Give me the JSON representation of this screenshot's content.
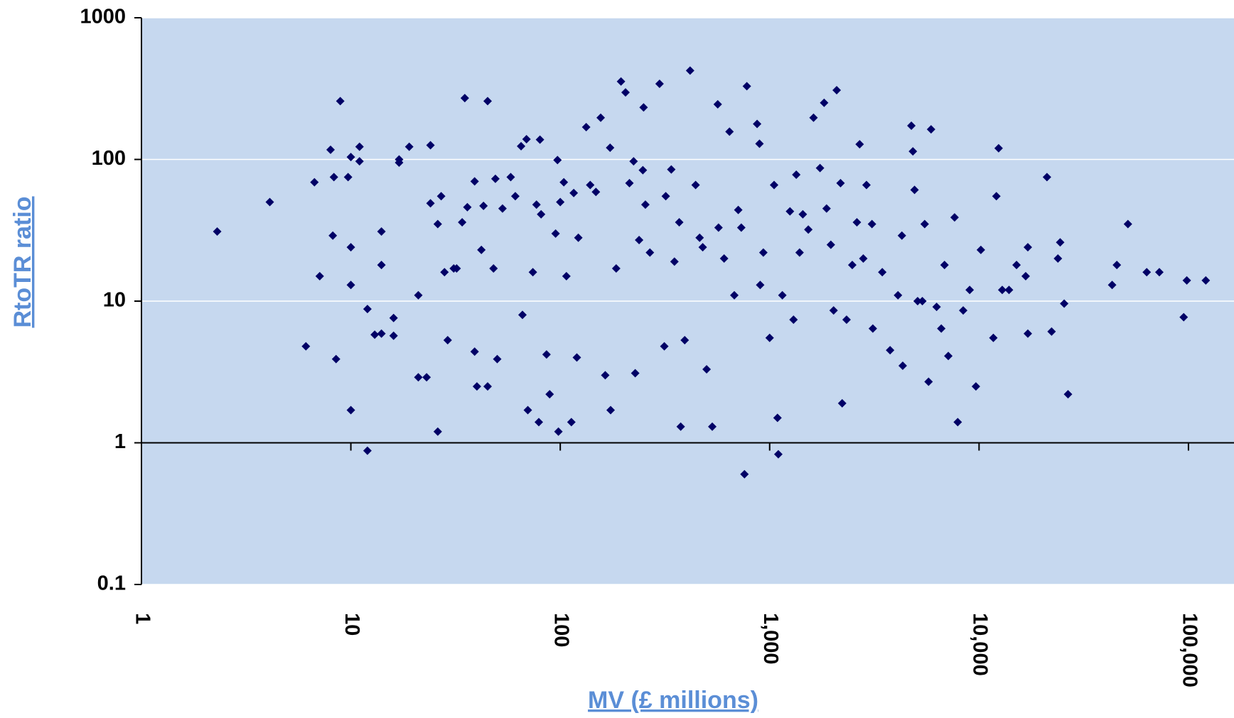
{
  "chart_data": {
    "type": "scatter",
    "x_title": "MV (£ millions)",
    "y_title": "RtoTR ratio",
    "xlog": true,
    "ylog": true,
    "xlim": [
      1,
      165000
    ],
    "ylim": [
      0.1,
      1000
    ],
    "xticks": [
      1,
      10,
      100,
      {
        "value": 1000,
        "label": "1,000"
      },
      {
        "value": 10000,
        "label": "10,000"
      },
      {
        "value": 100000,
        "label": "100,000"
      }
    ],
    "yticks": [
      0.1,
      1,
      10,
      100,
      1000
    ],
    "x_axis_crosses": 1,
    "grid": true,
    "background": "#c6d8ef",
    "color": "#000066",
    "x": [
      2.3,
      4.1,
      6.1,
      6.7,
      7.1,
      8.0,
      8.2,
      8.3,
      8.5,
      8.9,
      9.7,
      10,
      10,
      10,
      10,
      11,
      11,
      12,
      12,
      13,
      14,
      14,
      14,
      16,
      16,
      17,
      17,
      19,
      21,
      21,
      23,
      24,
      24,
      26,
      26,
      27,
      28,
      29,
      31,
      32,
      35,
      34,
      36,
      39,
      39,
      40,
      43,
      42,
      45,
      45,
      48,
      49,
      50,
      53,
      58,
      61,
      65,
      66,
      69,
      70,
      74,
      77,
      79,
      80,
      81,
      86,
      89,
      95,
      97,
      98,
      100,
      104,
      107,
      113,
      116,
      120,
      122,
      133,
      139,
      148,
      156,
      164,
      173,
      174,
      185,
      195,
      205,
      214,
      224,
      228,
      238,
      248,
      250,
      255,
      268,
      298,
      314,
      319,
      339,
      351,
      370,
      393,
      376,
      417,
      443,
      463,
      479,
      500,
      532,
      565,
      570,
      606,
      643,
      678,
      708,
      732,
      778,
      758,
      871,
      894,
      901,
      933,
      1000,
      1050,
      1090,
      1100,
      1150,
      1250,
      1300,
      1340,
      1390,
      1440,
      1530,
      1620,
      1740,
      1820,
      1870,
      1960,
      2020,
      2090,
      2180,
      2220,
      2330,
      2480,
      2610,
      2690,
      2800,
      2900,
      3080,
      3110,
      3450,
      3760,
      4100,
      4280,
      4320,
      4750,
      4830,
      4920,
      5090,
      5360,
      5500,
      5740,
      5900,
      6270,
      6600,
      6840,
      7130,
      7640,
      7910,
      8400,
      9020,
      9660,
      10200,
      11700,
      12100,
      12400,
      12900,
      13900,
      15100,
      16700,
      17100,
      17100,
      21100,
      22200,
      23800,
      24400,
      25500,
      26600,
      43200,
      45500,
      51400,
      63200,
      72600,
      94900,
      98200,
      121000
    ],
    "values": [
      31,
      50,
      4.8,
      69,
      15,
      117,
      29,
      75,
      3.9,
      258,
      75,
      104,
      24,
      13,
      1.7,
      123,
      97,
      8.8,
      0.88,
      5.8,
      31,
      5.9,
      18,
      7.6,
      5.7,
      95,
      100,
      123,
      2.9,
      11,
      2.9,
      126,
      49,
      35,
      1.2,
      55,
      16,
      5.3,
      17,
      17,
      271,
      36,
      46,
      70,
      4.4,
      2.5,
      47,
      23,
      258,
      2.5,
      17,
      73,
      3.9,
      45,
      75,
      55,
      124,
      8.0,
      139,
      1.7,
      16,
      48,
      1.4,
      138,
      41,
      4.2,
      2.2,
      30,
      99,
      1.2,
      50,
      69,
      15,
      1.4,
      58,
      4.0,
      28,
      169,
      66,
      59,
      197,
      3.0,
      121,
      1.7,
      17,
      355,
      297,
      68,
      97,
      3.1,
      27,
      84,
      233,
      48,
      22,
      342,
      4.8,
      55,
      85,
      19,
      36,
      5.3,
      1.3,
      424,
      66,
      28,
      24,
      3.3,
      1.3,
      245,
      33,
      20,
      157,
      11,
      44,
      33,
      329,
      0.6,
      178,
      129,
      13,
      22,
      5.5,
      66,
      1.5,
      0.83,
      11,
      43,
      7.4,
      78,
      22,
      41,
      32,
      197,
      87,
      251,
      45,
      25,
      8.6,
      308,
      68,
      1.9,
      7.4,
      18,
      36,
      128,
      20,
      66,
      35,
      6.4,
      16,
      4.5,
      11,
      29,
      3.5,
      173,
      114,
      61,
      10,
      10,
      35,
      2.7,
      163,
      9.1,
      6.4,
      18,
      4.1,
      39,
      1.4,
      8.6,
      12,
      2.5,
      23,
      5.5,
      55,
      120,
      12,
      12,
      18,
      15,
      24,
      5.9,
      75,
      6.1,
      20,
      26,
      9.6,
      2.2,
      13,
      18,
      35,
      16,
      16,
      7.7,
      14,
      14
    ]
  }
}
